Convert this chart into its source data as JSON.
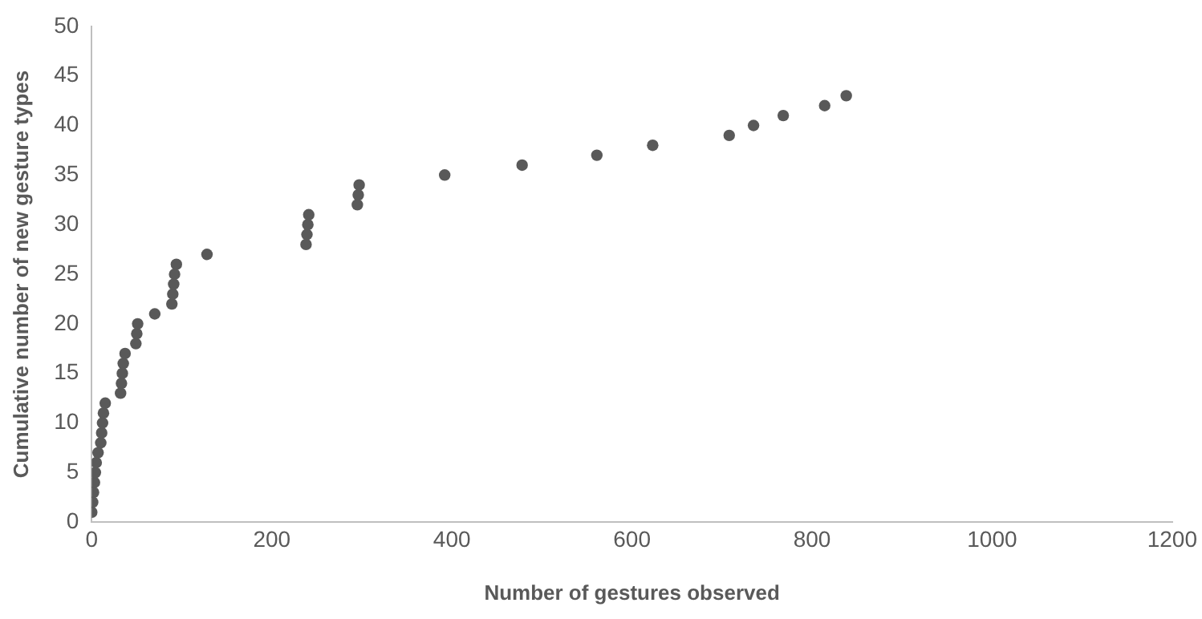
{
  "chart_data": {
    "type": "scatter",
    "xlabel": "Number of gestures observed",
    "ylabel": "Cumulative number of new gesture types",
    "x": [
      0,
      1,
      2,
      3,
      4,
      5,
      7,
      10,
      11,
      12,
      13,
      15,
      32,
      33,
      34,
      35,
      37,
      49,
      50,
      51,
      70,
      89,
      90,
      91,
      92,
      94,
      128,
      238,
      239,
      240,
      241,
      295,
      296,
      297,
      392,
      478,
      561,
      623,
      708,
      735,
      768,
      814,
      838
    ],
    "series": [
      {
        "color": "#595959",
        "values": [
          1,
          2,
          3,
          4,
          5,
          6,
          7,
          8,
          9,
          10,
          11,
          12,
          13,
          14,
          15,
          16,
          17,
          18,
          19,
          20,
          21,
          22,
          23,
          24,
          25,
          26,
          27,
          28,
          29,
          30,
          31,
          32,
          33,
          34,
          35,
          36,
          37,
          38,
          39,
          40,
          41,
          42,
          43
        ]
      }
    ],
    "xlim": [
      0,
      1200
    ],
    "xticks": [
      0,
      200,
      400,
      600,
      800,
      1000,
      1200
    ],
    "ylim": [
      0,
      50
    ],
    "yticks": [
      0,
      5,
      10,
      15,
      20,
      25,
      30,
      35,
      40,
      45,
      50
    ],
    "grid": false,
    "legend": false,
    "marker": "circle"
  }
}
